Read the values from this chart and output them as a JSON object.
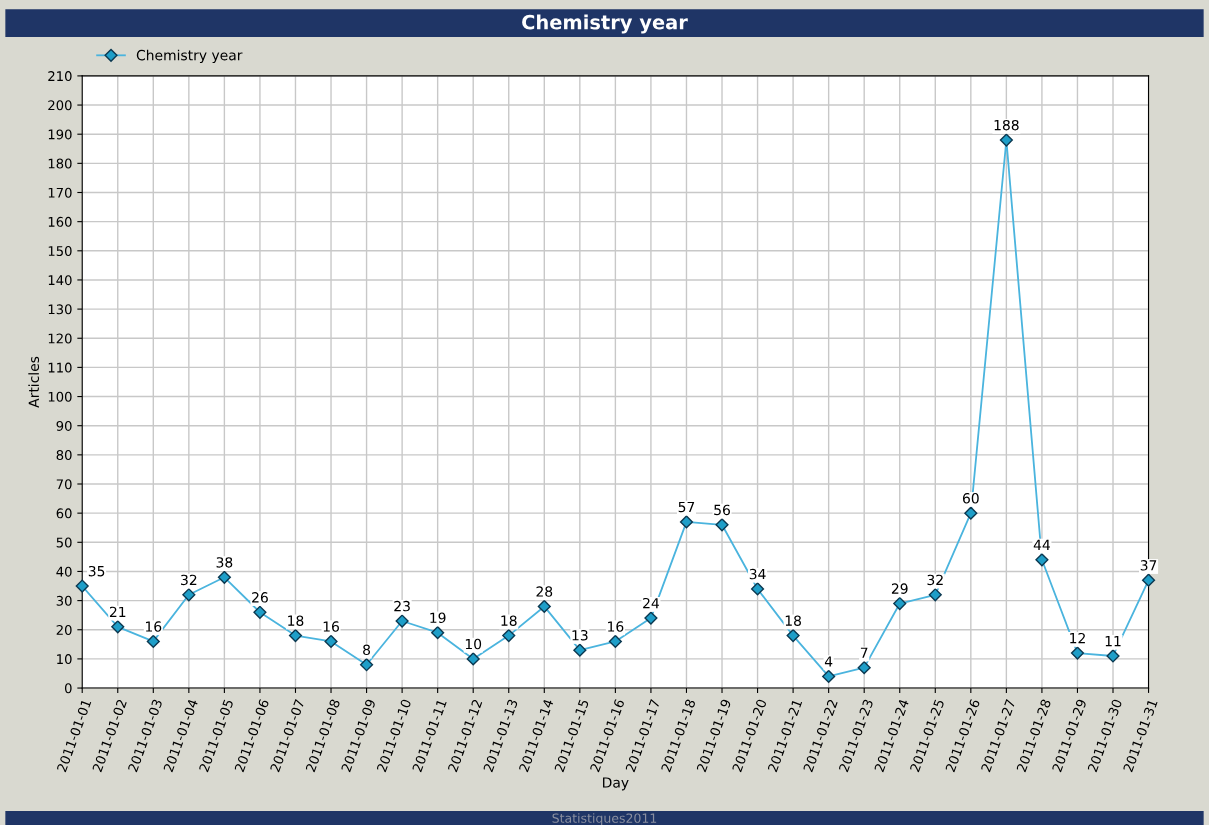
{
  "chart_data": {
    "type": "line",
    "title": "Chemistry year",
    "xlabel": "Day",
    "ylabel": "Articles",
    "categories": [
      "2011-01-01",
      "2011-01-02",
      "2011-01-03",
      "2011-01-04",
      "2011-01-05",
      "2011-01-06",
      "2011-01-07",
      "2011-01-08",
      "2011-01-09",
      "2011-01-10",
      "2011-01-11",
      "2011-01-12",
      "2011-01-13",
      "2011-01-14",
      "2011-01-15",
      "2011-01-16",
      "2011-01-17",
      "2011-01-18",
      "2011-01-19",
      "2011-01-20",
      "2011-01-21",
      "2011-01-22",
      "2011-01-23",
      "2011-01-24",
      "2011-01-25",
      "2011-01-26",
      "2011-01-27",
      "2011-01-28",
      "2011-01-29",
      "2011-01-30",
      "2011-01-31"
    ],
    "series": [
      {
        "name": "Chemistry year",
        "color": "#4ab4de",
        "values": [
          35,
          21,
          16,
          32,
          38,
          26,
          18,
          16,
          8,
          23,
          19,
          10,
          18,
          28,
          13,
          16,
          24,
          57,
          56,
          34,
          18,
          4,
          7,
          29,
          32,
          60,
          188,
          44,
          12,
          11,
          37
        ]
      }
    ],
    "ylim": [
      0,
      210
    ],
    "yticks": [
      0,
      10,
      20,
      30,
      40,
      50,
      60,
      70,
      80,
      90,
      100,
      110,
      120,
      130,
      140,
      150,
      160,
      170,
      180,
      190,
      200,
      210
    ],
    "grid": true,
    "legend": "top left",
    "marker": "diamond",
    "line_style": "solid",
    "data_labels": true,
    "annotations": [
      "Statistiques2011"
    ]
  }
}
